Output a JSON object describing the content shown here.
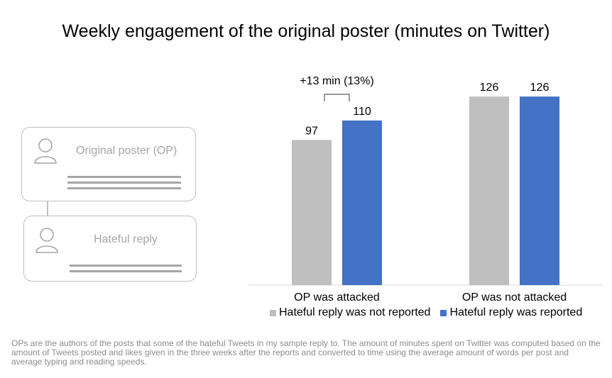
{
  "title": "Weekly engagement of the original poster (minutes on Twitter)",
  "illustration": {
    "op_card_label": "Original poster (OP)",
    "reply_card_label": "Hateful reply"
  },
  "chart_data": {
    "type": "bar",
    "categories": [
      "OP was attacked",
      "OP was not attacked"
    ],
    "series": [
      {
        "name": "Hateful reply was not reported",
        "values": [
          97,
          126
        ],
        "color": "#bfbfbf"
      },
      {
        "name": "Hateful reply was reported",
        "values": [
          110,
          126
        ],
        "color": "#4472c4"
      }
    ],
    "data_labels": [
      [
        "97",
        "126"
      ],
      [
        "110",
        "126"
      ]
    ],
    "annotation": "+13 min (13%)",
    "ylim": [
      0,
      135
    ],
    "grid": false,
    "legend_position": "bottom"
  },
  "footnote": "OPs are the authors of the posts that some of the hateful Tweets in my sample reply to. The amount of minutes spent on Twitter was computed based on the amount of Tweets posted and likes given in the three weeks after the reports and converted to time using the average amount of words per post and average typing and reading speeds."
}
